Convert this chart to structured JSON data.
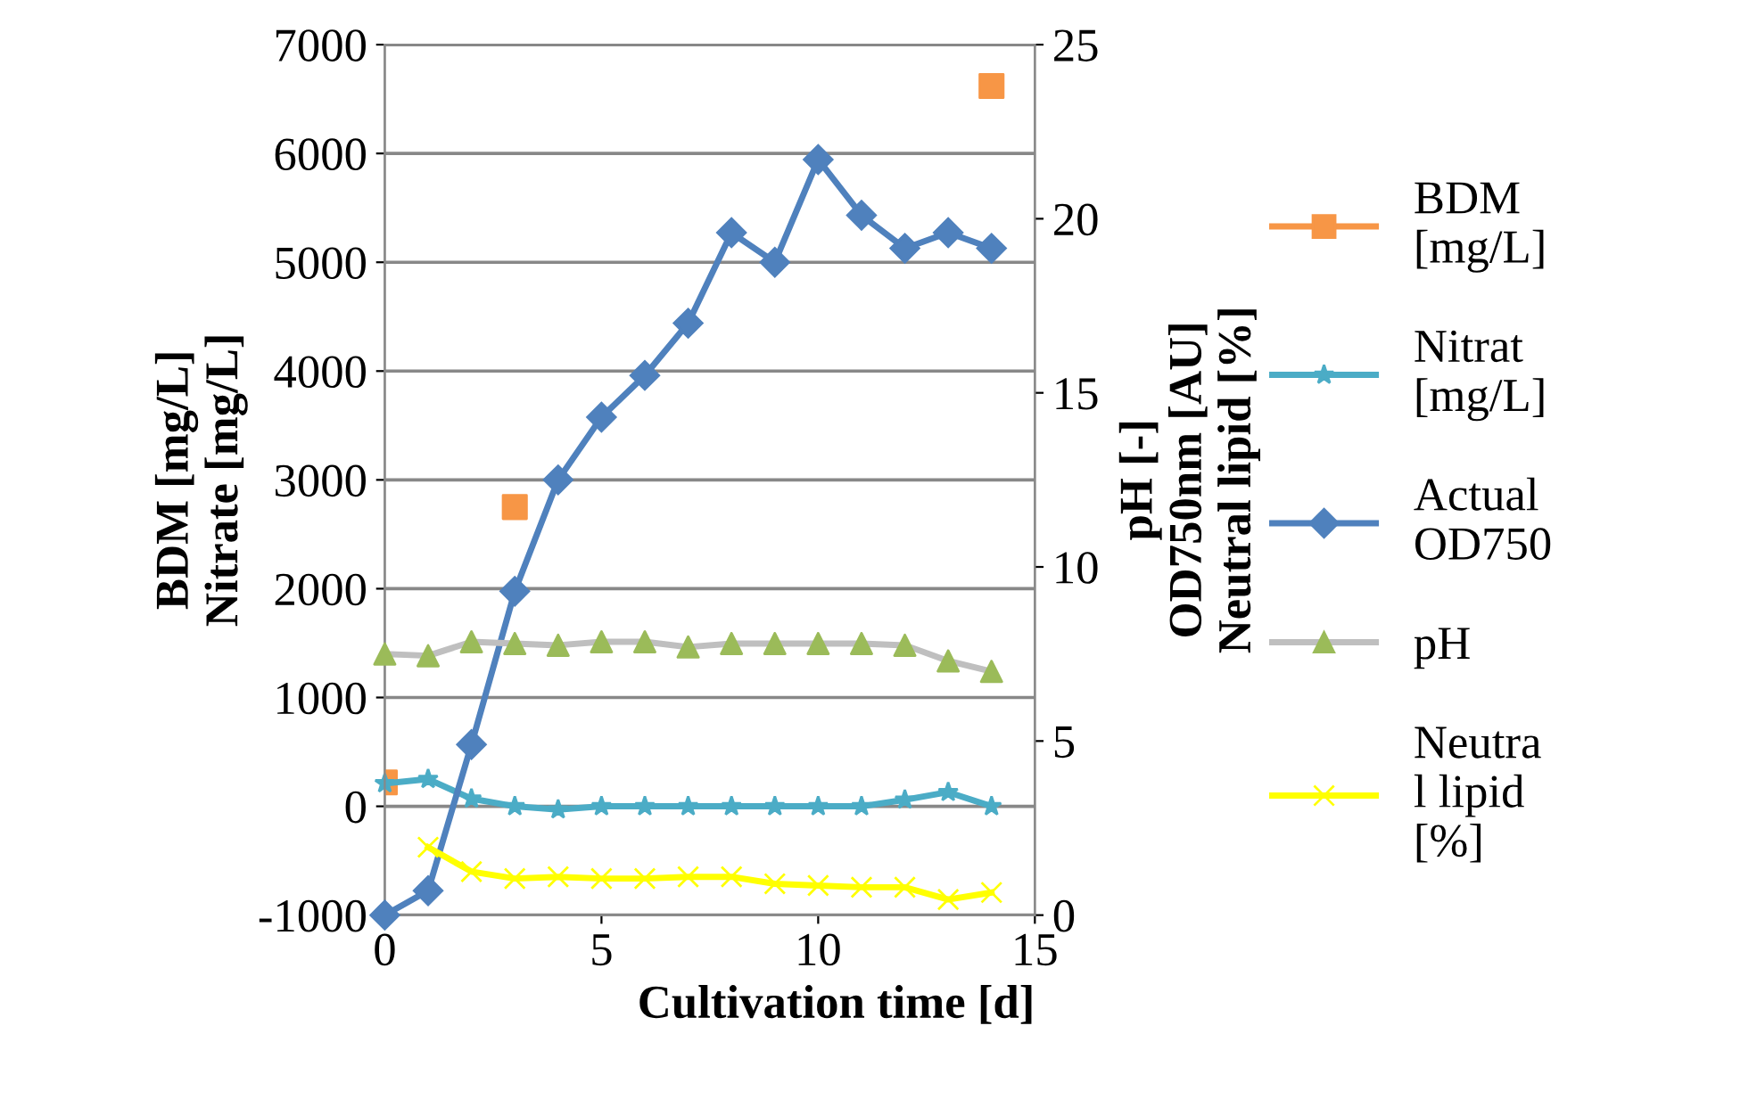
{
  "chart_data": {
    "type": "line",
    "xlabel": "Cultivation time [d]",
    "ylabel": "BDM [mg/L]\nNitrate [mg/L]",
    "y2label": "pH [-]\nOD750nm [AU]\nNeutral lipid [%]",
    "x": [
      0,
      1,
      2,
      3,
      4,
      5,
      6,
      7,
      8,
      9,
      10,
      11,
      12,
      13,
      14
    ],
    "xlim": [
      0,
      15
    ],
    "xticks": [
      0,
      5,
      10,
      15
    ],
    "ylim": [
      -1000,
      7000
    ],
    "yticks": [
      -1000,
      0,
      1000,
      2000,
      3000,
      4000,
      5000,
      6000,
      7000
    ],
    "y2lim": [
      0,
      25
    ],
    "y2ticks": [
      0,
      5,
      10,
      15,
      20,
      25
    ],
    "grid": "y",
    "legend": "right",
    "series": [
      {
        "name": "BDM\n[mg/L]",
        "type": "scatter",
        "marker": "square",
        "color": "#f79646",
        "x": [
          0,
          3,
          14
        ],
        "values": [
          220,
          2750,
          6620
        ]
      },
      {
        "name": "Nitrat\n[mg/L]",
        "marker": "star",
        "color": "#4bacc6",
        "values": [
          210,
          250,
          70,
          0,
          -30,
          0,
          0,
          0,
          0,
          0,
          0,
          0,
          60,
          130,
          0
        ]
      },
      {
        "name": "Actual\nOD750",
        "marker": "diamond",
        "color": "#4f81bd",
        "axis": "y2",
        "values": [
          0,
          0.7,
          4.9,
          9.3,
          12.5,
          14.3,
          15.5,
          17.0,
          19.6,
          18.75,
          21.7,
          20.1,
          19.15,
          19.6,
          19.15
        ]
      },
      {
        "name": "pH",
        "marker": "triangle",
        "color": "#bfbfbf",
        "colors": [
          "#9bbb59",
          "#9bbb59",
          "#9bbb59",
          "#9bbb59",
          "#9bbb59",
          "#9bbb59",
          "#9bbb59",
          "#9bbb59",
          "#9bbb59",
          "#9bbb59",
          "#9bbb59",
          "#9bbb59",
          "#9bbb59",
          "#9bbb59",
          "#9bbb59"
        ],
        "axis": "y2",
        "values": [
          7.5,
          7.45,
          7.85,
          7.8,
          7.75,
          7.85,
          7.85,
          7.7,
          7.8,
          7.8,
          7.8,
          7.8,
          7.75,
          7.3,
          7.0
        ]
      },
      {
        "name": "Neutra\nl lipid\n[%]",
        "marker": "cross",
        "color": "#ffff00",
        "axis": "y2",
        "values": [
          null,
          1.95,
          1.25,
          1.05,
          1.1,
          1.05,
          1.05,
          1.1,
          1.1,
          0.9,
          0.85,
          0.8,
          0.8,
          0.45,
          0.65
        ]
      }
    ]
  }
}
